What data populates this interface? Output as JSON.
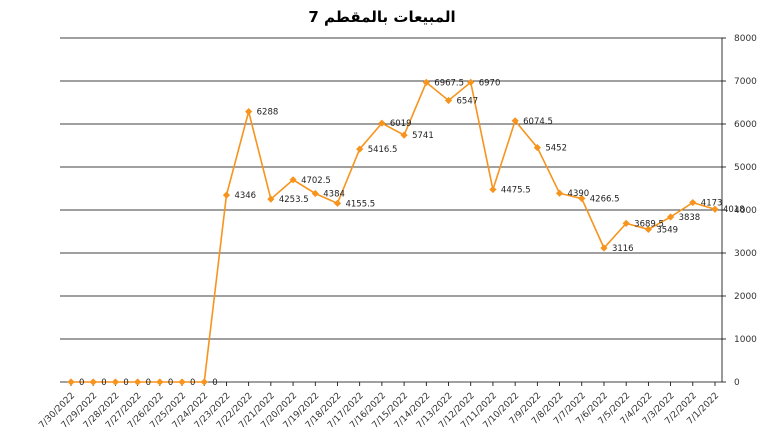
{
  "chart_data": {
    "type": "line",
    "title": "المبيعات بالمقطم 7",
    "categories": [
      "7/30/2022",
      "7/29/2022",
      "7/28/2022",
      "7/27/2022",
      "7/26/2022",
      "7/25/2022",
      "7/24/2022",
      "7/23/2022",
      "7/22/2022",
      "7/21/2022",
      "7/20/2022",
      "7/19/2022",
      "7/18/2022",
      "7/17/2022",
      "7/16/2022",
      "7/15/2022",
      "7/14/2022",
      "7/13/2022",
      "7/12/2022",
      "7/11/2022",
      "7/10/2022",
      "7/9/2022",
      "7/8/2022",
      "7/7/2022",
      "7/6/2022",
      "7/5/2022",
      "7/4/2022",
      "7/3/2022",
      "7/2/2022",
      "7/1/2022"
    ],
    "series": [
      {
        "values": [
          0,
          0,
          0,
          0,
          0,
          0,
          0,
          4346,
          6288,
          4253.5,
          4702.5,
          4384,
          4155.5,
          5416.5,
          6019,
          5741,
          6967.5,
          6547,
          6970,
          4475.5,
          6074.5,
          5452,
          4390,
          4266.5,
          3116,
          3689.5,
          3549,
          3838,
          4173,
          4018
        ],
        "labels": [
          "0",
          "0",
          "0",
          "0",
          "0",
          "0",
          "0",
          "4346",
          "6288",
          "4253.5",
          "4702.5",
          "4384",
          "4155.5",
          "5416.5",
          "6019",
          "5741",
          "6967.5",
          "6547",
          "6970",
          "4475.5",
          "6074.5",
          "5452",
          "4390",
          "4266.5",
          "3116",
          "3689.5",
          "3549",
          "3838",
          "4173",
          "4018"
        ]
      }
    ],
    "ylim": [
      0,
      8000
    ],
    "yticks": [
      "0",
      "1000",
      "2000",
      "3000",
      "4000",
      "5000",
      "6000",
      "7000",
      "8000"
    ],
    "y_axis_side": "right",
    "grid": true,
    "colors": {
      "line": "#F7941D",
      "marker": "#F7941D",
      "grid": "#000000"
    }
  }
}
